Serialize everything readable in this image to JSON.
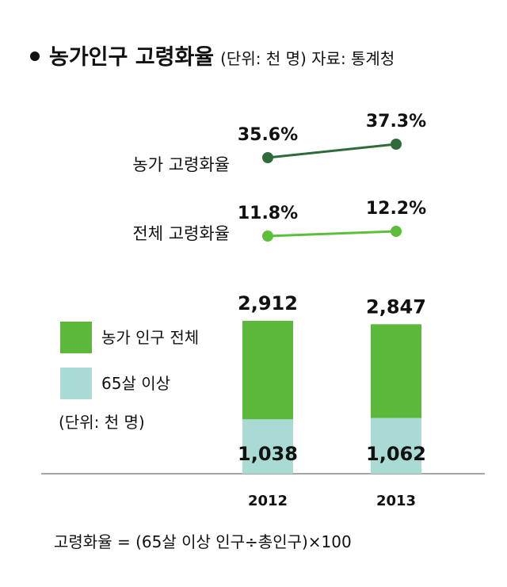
{
  "title": "농가인구 고령화율",
  "subtitle": "(단위: 천 명) 자료: 통계청",
  "footnote": "고령화율 = (65살 이상 인구÷총인구)×100",
  "colors": {
    "farm_line": "#2f6b3a",
    "total_line": "#5cbf3a",
    "bar_total": "#5cb83a",
    "bar_65": "#a9dad3",
    "axis": "#888888"
  },
  "chart_data": [
    {
      "type": "line",
      "x": [
        "2012",
        "2013"
      ],
      "series": [
        {
          "name": "농가 고령화율",
          "values": [
            35.6,
            37.3
          ],
          "labels": [
            "35.6%",
            "37.3%"
          ]
        },
        {
          "name": "전체 고령화율",
          "values": [
            11.8,
            12.2
          ],
          "labels": [
            "11.8%",
            "12.2%"
          ]
        }
      ]
    },
    {
      "type": "bar",
      "stacked": false,
      "overlap": true,
      "categories": [
        "2012",
        "2013"
      ],
      "series": [
        {
          "name": "농가 인구 전체",
          "values": [
            2912,
            2847
          ],
          "labels": [
            "2,912",
            "2,847"
          ]
        },
        {
          "name": "65살 이상",
          "values": [
            1038,
            1062
          ],
          "labels": [
            "1,038",
            "1,062"
          ]
        }
      ],
      "unit_note": "(단위: 천 명)"
    }
  ]
}
